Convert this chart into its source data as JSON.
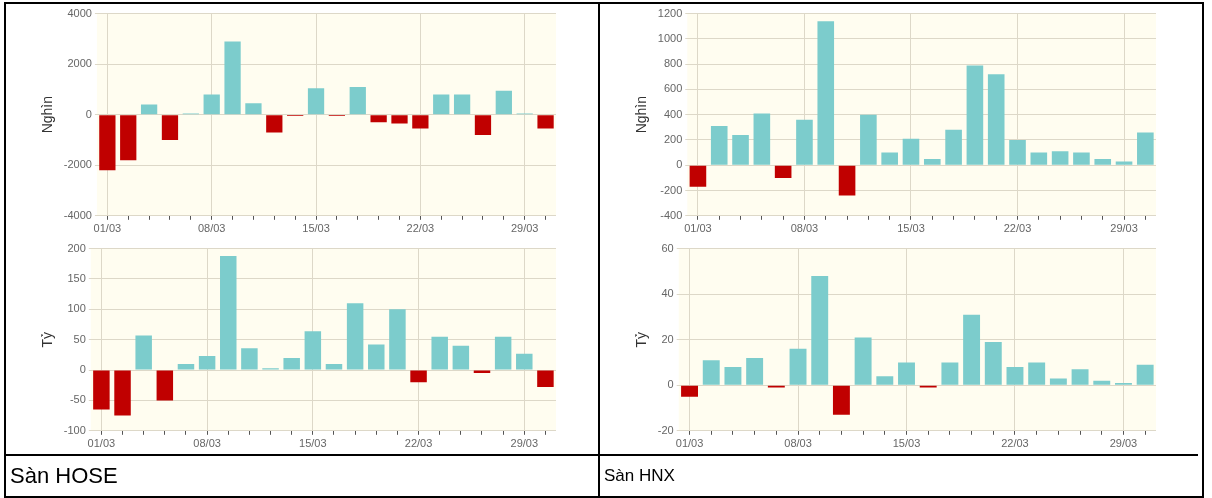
{
  "chart_data": [
    {
      "type": "bar",
      "ylabel": "Nghìn",
      "categories": [
        "01/03",
        null,
        null,
        null,
        null,
        "08/03",
        null,
        null,
        null,
        null,
        "15/03",
        null,
        null,
        null,
        null,
        "22/03",
        null,
        null,
        null,
        null,
        "29/03",
        null
      ],
      "values": [
        -2200,
        -1800,
        400,
        -1000,
        50,
        800,
        2900,
        450,
        -700,
        -50,
        1050,
        -50,
        1100,
        -300,
        -350,
        -550,
        800,
        800,
        -800,
        950,
        50,
        -550
      ],
      "colors": [
        "#c00000",
        "#c00000",
        "#7ccccc",
        "#c00000",
        "#7ccccc",
        "#7ccccc",
        "#7ccccc",
        "#7ccccc",
        "#c00000",
        "#c00000",
        "#7ccccc",
        "#c00000",
        "#7ccccc",
        "#c00000",
        "#c00000",
        "#c00000",
        "#7ccccc",
        "#7ccccc",
        "#c00000",
        "#7ccccc",
        "#7ccccc",
        "#c00000"
      ],
      "ylim": [
        -4000,
        4000
      ],
      "yticks": [
        -4000,
        -2000,
        0,
        2000,
        4000
      ],
      "grid": true
    },
    {
      "type": "bar",
      "ylabel": "Tỷ",
      "categories": [
        "01/03",
        null,
        null,
        null,
        null,
        "08/03",
        null,
        null,
        null,
        null,
        "15/03",
        null,
        null,
        null,
        null,
        "22/03",
        null,
        null,
        null,
        null,
        "29/03",
        null
      ],
      "values": [
        -65,
        -75,
        57,
        -50,
        10,
        23,
        188,
        36,
        3,
        20,
        64,
        10,
        110,
        42,
        100,
        -20,
        55,
        40,
        -5,
        55,
        27,
        -28
      ],
      "colors": [
        "#c00000",
        "#c00000",
        "#7ccccc",
        "#c00000",
        "#7ccccc",
        "#7ccccc",
        "#7ccccc",
        "#7ccccc",
        "#7ccccc",
        "#7ccccc",
        "#7ccccc",
        "#7ccccc",
        "#7ccccc",
        "#7ccccc",
        "#7ccccc",
        "#c00000",
        "#7ccccc",
        "#7ccccc",
        "#c00000",
        "#7ccccc",
        "#7ccccc",
        "#c00000"
      ],
      "ylim": [
        -100,
        200
      ],
      "yticks": [
        -100,
        -50,
        0,
        50,
        100,
        150,
        200
      ],
      "grid": true,
      "annotations": [
        "Sàn HOSE"
      ]
    },
    {
      "type": "bar",
      "ylabel": "Nghìn",
      "categories": [
        "01/03",
        null,
        null,
        null,
        null,
        "08/03",
        null,
        null,
        null,
        null,
        "15/03",
        null,
        null,
        null,
        null,
        "22/03",
        null,
        null,
        null,
        null,
        "29/03",
        null
      ],
      "values": [
        -170,
        310,
        240,
        410,
        -100,
        360,
        1140,
        -240,
        400,
        100,
        210,
        50,
        280,
        790,
        720,
        200,
        100,
        110,
        100,
        50,
        30,
        260
      ],
      "colors": [
        "#c00000",
        "#7ccccc",
        "#7ccccc",
        "#7ccccc",
        "#c00000",
        "#7ccccc",
        "#7ccccc",
        "#c00000",
        "#7ccccc",
        "#7ccccc",
        "#7ccccc",
        "#7ccccc",
        "#7ccccc",
        "#7ccccc",
        "#7ccccc",
        "#7ccccc",
        "#7ccccc",
        "#7ccccc",
        "#7ccccc",
        "#7ccccc",
        "#7ccccc",
        "#7ccccc"
      ],
      "ylim": [
        -400,
        1200
      ],
      "yticks": [
        -400,
        -200,
        0,
        200,
        400,
        600,
        800,
        1000,
        1200
      ],
      "grid": true
    },
    {
      "type": "bar",
      "ylabel": "Tỷ",
      "categories": [
        "01/03",
        null,
        null,
        null,
        null,
        "08/03",
        null,
        null,
        null,
        null,
        "15/03",
        null,
        null,
        null,
        null,
        "22/03",
        null,
        null,
        null,
        null,
        "29/03",
        null
      ],
      "values": [
        -5,
        11,
        8,
        12,
        -1,
        16,
        48,
        -13,
        21,
        4,
        10,
        -1,
        10,
        31,
        19,
        8,
        10,
        3,
        7,
        2,
        1,
        9
      ],
      "colors": [
        "#c00000",
        "#7ccccc",
        "#7ccccc",
        "#7ccccc",
        "#c00000",
        "#7ccccc",
        "#7ccccc",
        "#c00000",
        "#7ccccc",
        "#7ccccc",
        "#7ccccc",
        "#c00000",
        "#7ccccc",
        "#7ccccc",
        "#7ccccc",
        "#7ccccc",
        "#7ccccc",
        "#7ccccc",
        "#7ccccc",
        "#7ccccc",
        "#7ccccc",
        "#7ccccc"
      ],
      "ylim": [
        -20,
        60
      ],
      "yticks": [
        -20,
        0,
        20,
        40,
        60
      ],
      "grid": true,
      "annotations": [
        "Sàn HNX"
      ]
    }
  ]
}
